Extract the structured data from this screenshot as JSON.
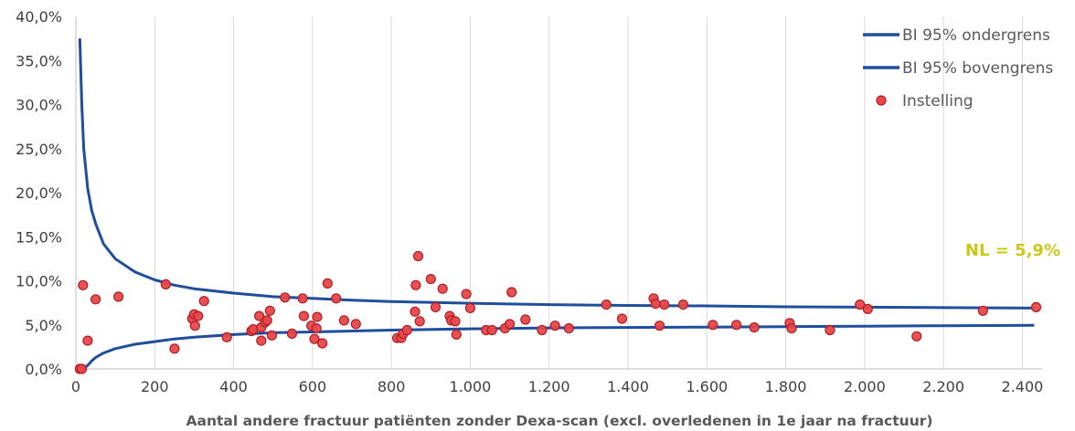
{
  "chart_data": {
    "type": "scatter",
    "xlabel": "Aantal andere fractuur patiënten zonder Dexa-scan (excl. overledenen in 1e jaar na fractuur)",
    "ylabel": "",
    "xlim": [
      0,
      2450
    ],
    "ylim": [
      0,
      0.4
    ],
    "x_ticks": [
      0,
      200,
      400,
      600,
      800,
      1000,
      1200,
      1400,
      1600,
      1800,
      2000,
      2200,
      2400
    ],
    "x_tick_labels": [
      "0",
      "200",
      "400",
      "600",
      "800",
      "1.000",
      "1.200",
      "1.400",
      "1.600",
      "1.800",
      "2.000",
      "2.200",
      "2.400"
    ],
    "y_ticks": [
      0,
      0.05,
      0.1,
      0.15,
      0.2,
      0.25,
      0.3,
      0.35,
      0.4
    ],
    "y_tick_labels": [
      "0,0%",
      "5,0%",
      "10,0%",
      "15,0%",
      "20,0%",
      "25,0%",
      "30,0%",
      "35,0%",
      "40,0%"
    ],
    "grid": "vertical",
    "legend_position": "top-right",
    "national_rate": 0.059,
    "annotation": "NL = 5,9%",
    "series": [
      {
        "name": "BI 95% ondergrens",
        "kind": "line",
        "color": "#1f4e9c",
        "x": [
          10,
          15,
          20,
          30,
          40,
          50,
          70,
          100,
          150,
          200,
          250,
          300,
          400,
          500,
          600,
          700,
          800,
          1000,
          1200,
          1400,
          1600,
          1800,
          2000,
          2200,
          2430
        ],
        "y": [
          0.0,
          0.0,
          0.0,
          0.004,
          0.009,
          0.013,
          0.018,
          0.023,
          0.028,
          0.031,
          0.034,
          0.036,
          0.039,
          0.041,
          0.042,
          0.043,
          0.044,
          0.0455,
          0.0465,
          0.047,
          0.0475,
          0.048,
          0.0485,
          0.049,
          0.0495
        ]
      },
      {
        "name": "BI 95% bovengrens",
        "kind": "line",
        "color": "#1f4e9c",
        "x": [
          10,
          15,
          20,
          30,
          40,
          50,
          70,
          100,
          150,
          200,
          250,
          300,
          400,
          500,
          600,
          700,
          800,
          1000,
          1200,
          1400,
          1600,
          1800,
          2000,
          2200,
          2430
        ],
        "y": [
          0.375,
          0.3,
          0.25,
          0.205,
          0.18,
          0.165,
          0.142,
          0.125,
          0.11,
          0.101,
          0.095,
          0.091,
          0.086,
          0.082,
          0.08,
          0.078,
          0.0765,
          0.0745,
          0.073,
          0.072,
          0.0715,
          0.0705,
          0.07,
          0.0695,
          0.069
        ]
      },
      {
        "name": "Instelling",
        "kind": "scatter",
        "color": "#e8474b",
        "stroke": "#b01f24",
        "points": [
          [
            10,
            0.0
          ],
          [
            15,
            0.0
          ],
          [
            18,
            0.095
          ],
          [
            30,
            0.032
          ],
          [
            50,
            0.079
          ],
          [
            108,
            0.082
          ],
          [
            228,
            0.096
          ],
          [
            250,
            0.023
          ],
          [
            295,
            0.057
          ],
          [
            300,
            0.062
          ],
          [
            302,
            0.049
          ],
          [
            310,
            0.06
          ],
          [
            325,
            0.077
          ],
          [
            383,
            0.036
          ],
          [
            445,
            0.043
          ],
          [
            450,
            0.045
          ],
          [
            465,
            0.06
          ],
          [
            470,
            0.032
          ],
          [
            470,
            0.047
          ],
          [
            480,
            0.053
          ],
          [
            485,
            0.055
          ],
          [
            492,
            0.066
          ],
          [
            497,
            0.038
          ],
          [
            530,
            0.081
          ],
          [
            548,
            0.04
          ],
          [
            575,
            0.08
          ],
          [
            578,
            0.06
          ],
          [
            597,
            0.049
          ],
          [
            605,
            0.034
          ],
          [
            610,
            0.046
          ],
          [
            612,
            0.059
          ],
          [
            625,
            0.029
          ],
          [
            638,
            0.097
          ],
          [
            660,
            0.08
          ],
          [
            680,
            0.055
          ],
          [
            710,
            0.051
          ],
          [
            815,
            0.035
          ],
          [
            825,
            0.035
          ],
          [
            830,
            0.04
          ],
          [
            840,
            0.044
          ],
          [
            860,
            0.065
          ],
          [
            862,
            0.095
          ],
          [
            868,
            0.128
          ],
          [
            872,
            0.054
          ],
          [
            900,
            0.102
          ],
          [
            912,
            0.07
          ],
          [
            930,
            0.091
          ],
          [
            948,
            0.06
          ],
          [
            952,
            0.055
          ],
          [
            962,
            0.054
          ],
          [
            965,
            0.039
          ],
          [
            990,
            0.085
          ],
          [
            1000,
            0.069
          ],
          [
            1040,
            0.044
          ],
          [
            1055,
            0.044
          ],
          [
            1088,
            0.046
          ],
          [
            1100,
            0.051
          ],
          [
            1105,
            0.087
          ],
          [
            1140,
            0.056
          ],
          [
            1182,
            0.044
          ],
          [
            1215,
            0.049
          ],
          [
            1250,
            0.046
          ],
          [
            1345,
            0.073
          ],
          [
            1385,
            0.057
          ],
          [
            1465,
            0.08
          ],
          [
            1470,
            0.074
          ],
          [
            1480,
            0.049
          ],
          [
            1492,
            0.073
          ],
          [
            1540,
            0.073
          ],
          [
            1615,
            0.05
          ],
          [
            1675,
            0.05
          ],
          [
            1720,
            0.047
          ],
          [
            1810,
            0.052
          ],
          [
            1815,
            0.046
          ],
          [
            1912,
            0.044
          ],
          [
            1988,
            0.073
          ],
          [
            2008,
            0.068
          ],
          [
            2132,
            0.037
          ],
          [
            2300,
            0.066
          ],
          [
            2435,
            0.07
          ]
        ]
      }
    ]
  },
  "colors": {
    "ci_line": "#1f4e9c",
    "dot_fill": "#e8474b",
    "dot_stroke": "#b01f24",
    "annotation": "#c9c91a",
    "grid": "#d9d9d9",
    "axis": "#bfbfbf"
  }
}
